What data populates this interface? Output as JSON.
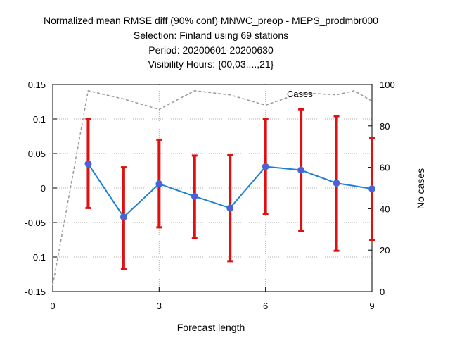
{
  "chart_data": {
    "type": "line",
    "title_lines": [
      "Normalized mean RMSE diff (90% conf) MNWC_preop - MEPS_prodmbr000",
      "Selection: Finland using    69 stations",
      "Period: 20200601-20200630",
      "Visibility   Hours: {00,03,...,21}"
    ],
    "xlabel": "Forecast length",
    "ylabel_right": "No cases",
    "xlim": [
      0,
      9
    ],
    "ylim": [
      -0.15,
      0.15
    ],
    "y2lim": [
      0,
      100
    ],
    "x_ticks": [
      "0",
      "3",
      "6",
      "9"
    ],
    "y_ticks": [
      "0.15",
      "0.1",
      "0.05",
      "0",
      "-0.05",
      "-0.1",
      "-0.15"
    ],
    "y2_ticks": [
      "100",
      "80",
      "60",
      "40",
      "20",
      "0"
    ],
    "grid": true,
    "legend": "top-right",
    "cases_label": "Cases",
    "colors": {
      "mean": "#1f7fd6",
      "errorbar": "#e01010",
      "cases": "#999999"
    },
    "series": [
      {
        "x": [
          1,
          2,
          3,
          4,
          5,
          6,
          7,
          8,
          9
        ],
        "values": [
          0.035,
          -0.042,
          0.006,
          -0.012,
          -0.029,
          0.031,
          0.026,
          0.007,
          -0.001
        ],
        "ci_low": [
          -0.029,
          -0.117,
          -0.057,
          -0.072,
          -0.106,
          -0.038,
          -0.062,
          -0.091,
          -0.075
        ],
        "ci_high": [
          0.1,
          0.03,
          0.07,
          0.047,
          0.048,
          0.1,
          0.114,
          0.104,
          0.073
        ]
      },
      {
        "name": "Cases",
        "x": [
          0,
          1,
          2,
          3,
          4,
          5,
          6,
          7,
          8,
          8.5,
          9
        ],
        "values": [
          3,
          97,
          93,
          88,
          97,
          95,
          90,
          96,
          95,
          97,
          92
        ]
      }
    ]
  }
}
